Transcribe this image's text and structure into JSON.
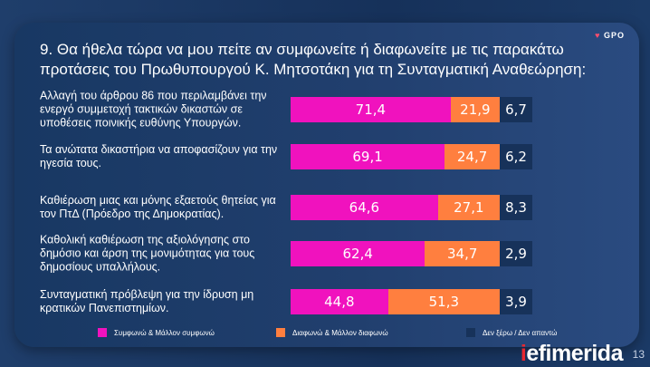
{
  "header": {
    "title": "9. Θα ήθελα τώρα να μου πείτε αν συμφωνείτε ή διαφωνείτε με τις παρακάτω προτάσεις του Πρωθυπουργού Κ. Μητσοτάκη για τη Συνταγματική Αναθεώρηση:",
    "logo": "GPO",
    "brand_i": "i",
    "brand_rest": "efimerida",
    "page_number": "13"
  },
  "chart_data": {
    "type": "bar",
    "orientation": "horizontal",
    "stacked": true,
    "categories": [
      "Αλλαγή του άρθρου 86 που περιλαμβάνει την ενεργό συμμετοχή τακτικών δικαστών σε υποθέσεις ποινικής ευθύνης Υπουργών.",
      "Τα ανώτατα δικαστήρια να αποφασίζουν για την ηγεσία τους.",
      "Καθιέρωση μιας και μόνης εξαετούς θητείας για τον ΠτΔ (Πρόεδρο της Δημοκρατίας).",
      "Καθολική καθιέρωση της αξιολόγησης στο δημόσιο και άρση της μονιμότητας για τους δημοσίους υπαλλήλους.",
      "Συνταγματική πρόβλεψη για την ίδρυση μη κρατικών Πανεπιστημίων."
    ],
    "series": [
      {
        "name": "Συμφωνώ & Μάλλον συμφωνώ",
        "color": "#f012be",
        "values": [
          "71,4",
          "69,1",
          "64,6",
          "62,4",
          "44,8"
        ]
      },
      {
        "name": "Διαφωνώ & Μάλλον διαφωνώ",
        "color": "#ff7f3f",
        "values": [
          "21,9",
          "24,7",
          "27,1",
          "34,7",
          "51,3"
        ]
      },
      {
        "name": "Δεν ξέρω / Δεν απαντώ",
        "color": "#17325a",
        "values": [
          "6,7",
          "6,2",
          "8,3",
          "2,9",
          "3,9"
        ]
      }
    ],
    "legend_position": "bottom"
  }
}
